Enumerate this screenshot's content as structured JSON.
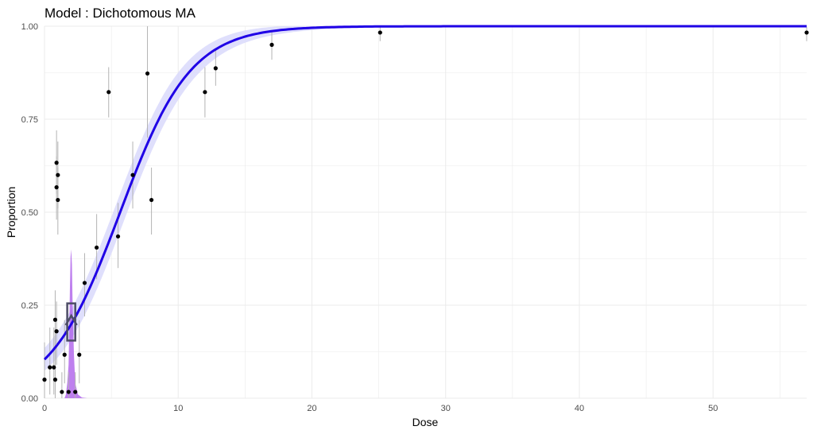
{
  "chart_data": {
    "type": "scatter",
    "title": "Model : Dichotomous MA",
    "xlabel": "Dose",
    "ylabel": "Proportion",
    "xlim": [
      0,
      57
    ],
    "ylim": [
      0,
      1
    ],
    "x_ticks": [
      0,
      10,
      20,
      30,
      40,
      50
    ],
    "y_ticks": [
      0.0,
      0.25,
      0.5,
      0.75,
      1.0
    ],
    "y_tick_labels": [
      "0.00",
      "0.25",
      "0.50",
      "0.75",
      "1.00"
    ],
    "x_tick_labels": [
      "0",
      "10",
      "20",
      "30",
      "40",
      "50"
    ],
    "grid": true,
    "points": [
      {
        "x": 0.0,
        "y": 0.05,
        "lo": 0.0,
        "hi": 0.15
      },
      {
        "x": 0.4,
        "y": 0.083,
        "lo": 0.01,
        "hi": 0.19
      },
      {
        "x": 0.7,
        "y": 0.083,
        "lo": 0.01,
        "hi": 0.19
      },
      {
        "x": 0.8,
        "y": 0.05,
        "lo": 0.0,
        "hi": 0.15
      },
      {
        "x": 0.8,
        "y": 0.211,
        "lo": 0.12,
        "hi": 0.29
      },
      {
        "x": 0.9,
        "y": 0.18,
        "lo": 0.09,
        "hi": 0.26
      },
      {
        "x": 0.9,
        "y": 0.567,
        "lo": 0.48,
        "hi": 0.65
      },
      {
        "x": 0.9,
        "y": 0.633,
        "lo": 0.55,
        "hi": 0.72
      },
      {
        "x": 1.0,
        "y": 0.6,
        "lo": 0.51,
        "hi": 0.69
      },
      {
        "x": 1.0,
        "y": 0.533,
        "lo": 0.44,
        "hi": 0.62
      },
      {
        "x": 1.3,
        "y": 0.017,
        "lo": 0.0,
        "hi": 0.07
      },
      {
        "x": 1.5,
        "y": 0.117,
        "lo": 0.04,
        "hi": 0.21
      },
      {
        "x": 1.8,
        "y": 0.017,
        "lo": 0.0,
        "hi": 0.07
      },
      {
        "x": 2.3,
        "y": 0.017,
        "lo": 0.0,
        "hi": 0.07
      },
      {
        "x": 2.6,
        "y": 0.117,
        "lo": 0.04,
        "hi": 0.21
      },
      {
        "x": 3.0,
        "y": 0.31,
        "lo": 0.22,
        "hi": 0.39
      },
      {
        "x": 3.9,
        "y": 0.405,
        "lo": 0.32,
        "hi": 0.495
      },
      {
        "x": 4.8,
        "y": 0.823,
        "lo": 0.755,
        "hi": 0.89
      },
      {
        "x": 5.5,
        "y": 0.435,
        "lo": 0.35,
        "hi": 0.525
      },
      {
        "x": 6.6,
        "y": 0.6,
        "lo": 0.51,
        "hi": 0.69
      },
      {
        "x": 7.7,
        "y": 0.873,
        "lo": 0.7,
        "hi": 1.0
      },
      {
        "x": 8.0,
        "y": 0.533,
        "lo": 0.44,
        "hi": 0.62
      },
      {
        "x": 12.0,
        "y": 0.823,
        "lo": 0.755,
        "hi": 0.89
      },
      {
        "x": 12.8,
        "y": 0.887,
        "lo": 0.84,
        "hi": 0.94
      },
      {
        "x": 17.0,
        "y": 0.95,
        "lo": 0.91,
        "hi": 0.985
      },
      {
        "x": 25.1,
        "y": 0.983,
        "lo": 0.96,
        "hi": 0.998
      },
      {
        "x": 57.0,
        "y": 0.983,
        "lo": 0.96,
        "hi": 0.998
      }
    ],
    "fit_curve": {
      "type": "logistic",
      "a": -2.15,
      "b": 0.38
    },
    "fit_band_width": 0.05,
    "bmd_marker": {
      "x": 2.0,
      "y": 0.205,
      "lo": 0.155,
      "hi": 0.255,
      "x_lo": 1.7,
      "x_hi": 2.3
    },
    "bmd_density": [
      {
        "x": 1.5,
        "d": 0.0
      },
      {
        "x": 1.6,
        "d": 0.01
      },
      {
        "x": 1.7,
        "d": 0.04
      },
      {
        "x": 1.8,
        "d": 0.09
      },
      {
        "x": 1.85,
        "d": 0.18
      },
      {
        "x": 1.9,
        "d": 0.3
      },
      {
        "x": 1.95,
        "d": 0.38
      },
      {
        "x": 2.0,
        "d": 0.4
      },
      {
        "x": 2.05,
        "d": 0.36
      },
      {
        "x": 2.1,
        "d": 0.26
      },
      {
        "x": 2.2,
        "d": 0.12
      },
      {
        "x": 2.3,
        "d": 0.04
      },
      {
        "x": 2.5,
        "d": 0.01
      },
      {
        "x": 2.8,
        "d": 0.002
      },
      {
        "x": 3.2,
        "d": 0.0
      }
    ],
    "colors": {
      "curve": "#1f00e6",
      "band": "#d9d9fb",
      "points": "#000000",
      "error_bars": "#b3b3b3",
      "density": "#a855e8",
      "bmd_box": "#4d4d66",
      "grid": "#ebebeb"
    }
  }
}
